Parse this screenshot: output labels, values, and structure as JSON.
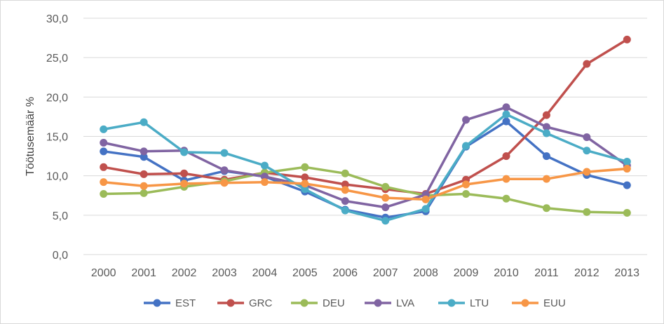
{
  "chart_data": {
    "type": "line",
    "title": "",
    "xlabel": "",
    "ylabel": "Töötusemäär %",
    "ylim": [
      0,
      30
    ],
    "yticks": [
      "0,0",
      "5,0",
      "10,0",
      "15,0",
      "20,0",
      "25,0",
      "30,0"
    ],
    "categories": [
      "2000",
      "2001",
      "2002",
      "2003",
      "2004",
      "2005",
      "2006",
      "2007",
      "2008",
      "2009",
      "2010",
      "2011",
      "2012",
      "2013"
    ],
    "grid": true,
    "legend_position": "bottom",
    "series": [
      {
        "name": "EST",
        "color": "#4472c4",
        "values": [
          13.1,
          12.4,
          9.4,
          10.6,
          9.9,
          8.0,
          5.7,
          4.7,
          5.5,
          13.7,
          16.9,
          12.5,
          10.1,
          8.8
        ]
      },
      {
        "name": "GRC",
        "color": "#c0504d",
        "values": [
          11.1,
          10.2,
          10.3,
          9.5,
          10.4,
          9.8,
          8.9,
          8.3,
          7.7,
          9.5,
          12.5,
          17.7,
          24.2,
          27.3
        ]
      },
      {
        "name": "DEU",
        "color": "#9bbb59",
        "values": [
          7.7,
          7.8,
          8.6,
          9.3,
          10.4,
          11.1,
          10.3,
          8.6,
          7.5,
          7.7,
          7.1,
          5.9,
          5.4,
          5.3
        ]
      },
      {
        "name": "LVA",
        "color": "#8064a2",
        "values": [
          14.2,
          13.1,
          13.2,
          10.7,
          9.9,
          8.8,
          6.8,
          6.0,
          7.6,
          17.1,
          18.7,
          16.2,
          14.9,
          11.3
        ]
      },
      {
        "name": "LTU",
        "color": "#4bacc6",
        "values": [
          15.9,
          16.8,
          13.0,
          12.9,
          11.3,
          8.3,
          5.6,
          4.3,
          5.8,
          13.8,
          17.8,
          15.4,
          13.2,
          11.8
        ]
      },
      {
        "name": "EUU",
        "color": "#f79646",
        "values": [
          9.2,
          8.7,
          9.0,
          9.1,
          9.2,
          9.0,
          8.2,
          7.2,
          7.0,
          8.9,
          9.6,
          9.6,
          10.5,
          10.9
        ]
      }
    ]
  }
}
